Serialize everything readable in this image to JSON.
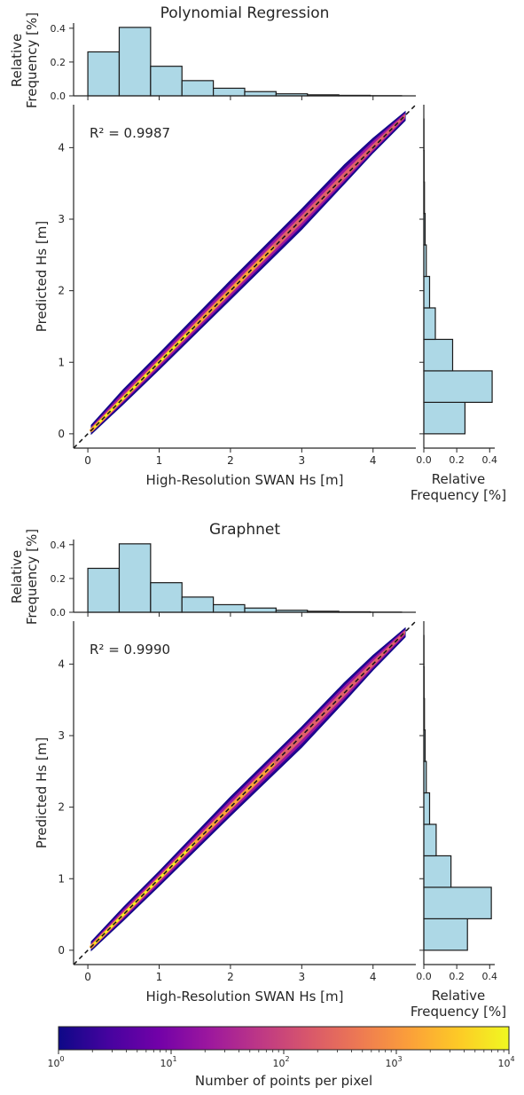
{
  "chart_data": [
    {
      "type": "scatter",
      "title": "Polynomial Regression",
      "xlabel": "High-Resolution SWAN Hs [m]",
      "ylabel": "Predicted Hs [m]",
      "r2_label": "R² = 0.9987",
      "r2": 0.9987,
      "xlim": [
        -0.2,
        4.6
      ],
      "ylim": [
        -0.2,
        4.6
      ],
      "x_ticks": [
        "0",
        "1",
        "2",
        "3",
        "4"
      ],
      "y_ticks": [
        "0",
        "1",
        "2",
        "3",
        "4"
      ],
      "reference_line": "y = x (dashed)",
      "density": "2D histogram, log color scale",
      "band": [
        {
          "x": 0.05,
          "low": 0.0,
          "high": 0.12
        },
        {
          "x": 0.5,
          "low": 0.42,
          "high": 0.62
        },
        {
          "x": 1.0,
          "low": 0.9,
          "high": 1.12
        },
        {
          "x": 2.0,
          "low": 1.88,
          "high": 2.14
        },
        {
          "x": 3.0,
          "low": 2.86,
          "high": 3.14
        },
        {
          "x": 3.6,
          "low": 3.5,
          "high": 3.76
        },
        {
          "x": 4.0,
          "low": 3.93,
          "high": 4.13
        },
        {
          "x": 4.45,
          "low": 4.38,
          "high": 4.5
        }
      ],
      "top_hist": {
        "ylabel": "Relative\nFrequency [%]",
        "yticks": [
          "0.0",
          "0.2",
          "0.4"
        ],
        "ylim": [
          0,
          0.42
        ],
        "bin_edges": [
          0.0,
          0.44,
          0.88,
          1.32,
          1.76,
          2.2,
          2.64,
          3.08,
          3.52,
          3.96,
          4.4
        ],
        "values": [
          0.26,
          0.405,
          0.175,
          0.09,
          0.045,
          0.025,
          0.012,
          0.006,
          0.003,
          0.001
        ]
      },
      "right_hist": {
        "xlabel": "Relative\nFrequency [%]",
        "xticks": [
          "0.0",
          "0.2",
          "0.4"
        ],
        "xlim": [
          0,
          0.42
        ],
        "bin_edges": [
          0.0,
          0.44,
          0.88,
          1.32,
          1.76,
          2.2,
          2.64,
          3.08,
          3.52,
          3.96,
          4.4
        ],
        "values": [
          0.25,
          0.415,
          0.175,
          0.07,
          0.035,
          0.015,
          0.008,
          0.004,
          0.002,
          0.001
        ]
      }
    },
    {
      "type": "scatter",
      "title": "Graphnet",
      "xlabel": "High-Resolution SWAN Hs [m]",
      "ylabel": "Predicted Hs [m]",
      "r2_label": "R² = 0.9990",
      "r2": 0.999,
      "xlim": [
        -0.2,
        4.6
      ],
      "ylim": [
        -0.2,
        4.6
      ],
      "x_ticks": [
        "0",
        "1",
        "2",
        "3",
        "4"
      ],
      "y_ticks": [
        "0",
        "1",
        "2",
        "3",
        "4"
      ],
      "reference_line": "y = x (dashed)",
      "density": "2D histogram, log color scale",
      "band": [
        {
          "x": 0.05,
          "low": 0.0,
          "high": 0.12
        },
        {
          "x": 0.5,
          "low": 0.42,
          "high": 0.6
        },
        {
          "x": 1.0,
          "low": 0.9,
          "high": 1.1
        },
        {
          "x": 2.0,
          "low": 1.88,
          "high": 2.14
        },
        {
          "x": 3.0,
          "low": 2.84,
          "high": 3.12
        },
        {
          "x": 3.6,
          "low": 3.48,
          "high": 3.74
        },
        {
          "x": 4.0,
          "low": 3.92,
          "high": 4.12
        },
        {
          "x": 4.45,
          "low": 4.38,
          "high": 4.5
        }
      ],
      "top_hist": {
        "ylabel": "Relative\nFrequency [%]",
        "yticks": [
          "0.0",
          "0.2",
          "0.4"
        ],
        "ylim": [
          0,
          0.42
        ],
        "bin_edges": [
          0.0,
          0.44,
          0.88,
          1.32,
          1.76,
          2.2,
          2.64,
          3.08,
          3.52,
          3.96,
          4.4
        ],
        "values": [
          0.26,
          0.405,
          0.175,
          0.09,
          0.045,
          0.025,
          0.012,
          0.006,
          0.003,
          0.001
        ]
      },
      "right_hist": {
        "xlabel": "Relative\nFrequency [%]",
        "xticks": [
          "0.0",
          "0.2",
          "0.4"
        ],
        "xlim": [
          0,
          0.42
        ],
        "bin_edges": [
          0.0,
          0.44,
          0.88,
          1.32,
          1.76,
          2.2,
          2.64,
          3.08,
          3.52,
          3.96,
          4.4
        ],
        "values": [
          0.265,
          0.41,
          0.165,
          0.075,
          0.035,
          0.015,
          0.008,
          0.004,
          0.002,
          0.001
        ]
      }
    }
  ],
  "colorbar": {
    "label": "Number of points per pixel",
    "scale": "log",
    "range": [
      1,
      10000
    ],
    "colormap": "plasma",
    "ticks": [
      {
        "base": "10",
        "exp": "0",
        "value": 1
      },
      {
        "base": "10",
        "exp": "1",
        "value": 10
      },
      {
        "base": "10",
        "exp": "2",
        "value": 100
      },
      {
        "base": "10",
        "exp": "3",
        "value": 1000
      },
      {
        "base": "10",
        "exp": "4",
        "value": 10000
      }
    ]
  },
  "colors": {
    "hist_fill": "#add8e6",
    "hist_edge": "#1a1a1a",
    "axis": "#262626",
    "plasma": [
      "#0d0887",
      "#46039f",
      "#7201a8",
      "#9c179e",
      "#bd3786",
      "#d8576b",
      "#ed7953",
      "#fb9f3a",
      "#fdca26",
      "#f0f921"
    ]
  }
}
